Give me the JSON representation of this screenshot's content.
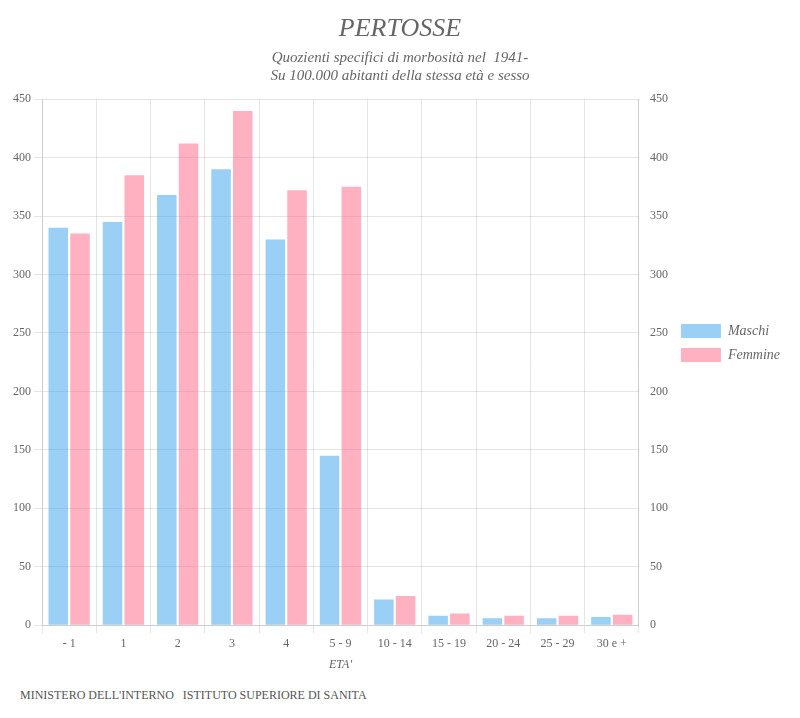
{
  "chart_data": {
    "type": "bar",
    "title": "PERTOSSE",
    "subtitle": "Quozienti specifici di morbosità nel  1941-\nSu 100.000 abitanti della stessa età e sesso",
    "xlabel": "ETA'",
    "categories": [
      "- 1",
      "1",
      "2",
      "3",
      "4",
      "5 - 9",
      "10 - 14",
      "15 - 19",
      "20 - 24",
      "25 - 29",
      "30 e +"
    ],
    "series": [
      {
        "name": "Maschi",
        "values": [
          340,
          345,
          368,
          390,
          330,
          145,
          22,
          8,
          6,
          6,
          7
        ]
      },
      {
        "name": "Femmine",
        "values": [
          335,
          385,
          412,
          440,
          372,
          375,
          25,
          10,
          8,
          8,
          9
        ]
      }
    ],
    "ylim": [
      0,
      450
    ],
    "yticks": [
      0,
      50,
      100,
      150,
      200,
      250,
      300,
      350,
      400,
      450
    ],
    "y2lim": [
      0,
      450
    ],
    "y2ticks": [
      0,
      50,
      100,
      150,
      200,
      250,
      300,
      350,
      400,
      450
    ],
    "grid": true,
    "legend": "right",
    "annotations": [
      "MINISTERO DELL'INTERNO   ISTITUTO SUPERIORE DI SANITA"
    ]
  }
}
